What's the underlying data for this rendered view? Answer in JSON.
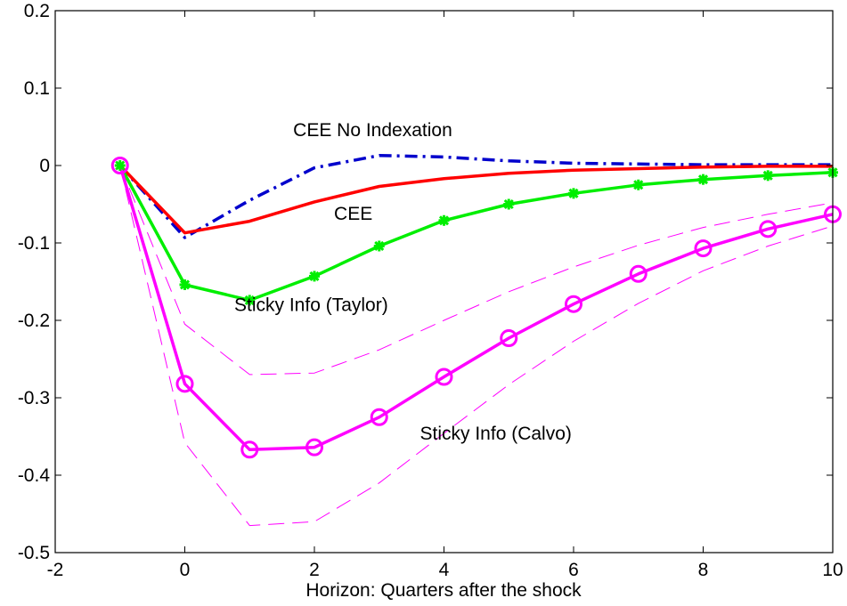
{
  "chart_data": {
    "type": "line",
    "title": "",
    "xlabel": "Horizon: Quarters after the shock",
    "ylabel": "",
    "xlim": [
      -2,
      10
    ],
    "ylim": [
      -0.5,
      0.2
    ],
    "xticks": [
      -2,
      0,
      2,
      4,
      6,
      8,
      10
    ],
    "yticks": [
      0.2,
      0.1,
      0,
      -0.1,
      -0.2,
      -0.3,
      -0.4,
      -0.5
    ],
    "xtick_labels": [
      "-2",
      "0",
      "2",
      "4",
      "6",
      "8",
      "10"
    ],
    "ytick_labels": [
      "0.2",
      "0.1",
      "0",
      "-0.1",
      "-0.2",
      "-0.3",
      "-0.4",
      "-0.5"
    ],
    "grid": false,
    "series": [
      {
        "name": "CEE No Indexation",
        "color": "#0000cc",
        "style": "dash-dot",
        "marker": "none",
        "x": [
          -1,
          0,
          1,
          2,
          3,
          4,
          5,
          6,
          7,
          8,
          9,
          10
        ],
        "y": [
          0,
          -0.093,
          -0.045,
          -0.003,
          0.013,
          0.011,
          0.006,
          0.003,
          0.002,
          0.001,
          0.001,
          0.001
        ]
      },
      {
        "name": "CEE",
        "color": "#ff0000",
        "style": "solid",
        "marker": "none",
        "x": [
          -1,
          0,
          1,
          2,
          3,
          4,
          5,
          6,
          7,
          8,
          9,
          10
        ],
        "y": [
          0,
          -0.087,
          -0.072,
          -0.047,
          -0.027,
          -0.017,
          -0.01,
          -0.006,
          -0.004,
          -0.002,
          -0.001,
          -0.001
        ]
      },
      {
        "name": "Sticky Info (Taylor)",
        "color": "#00ee00",
        "style": "solid",
        "marker": "star",
        "x": [
          -1,
          0,
          1,
          2,
          3,
          4,
          5,
          6,
          7,
          8,
          9,
          10
        ],
        "y": [
          0,
          -0.154,
          -0.174,
          -0.143,
          -0.104,
          -0.071,
          -0.05,
          -0.036,
          -0.025,
          -0.018,
          -0.013,
          -0.009
        ]
      },
      {
        "name": "Sticky Info (Calvo)",
        "color": "#ff00ff",
        "style": "solid",
        "marker": "circle",
        "x": [
          -1,
          0,
          1,
          2,
          3,
          4,
          5,
          6,
          7,
          8,
          9,
          10
        ],
        "y": [
          0,
          -0.282,
          -0.367,
          -0.364,
          -0.325,
          -0.273,
          -0.223,
          -0.179,
          -0.14,
          -0.107,
          -0.082,
          -0.063
        ]
      },
      {
        "name": "",
        "color": "#ff00ff",
        "style": "dashed-thin",
        "marker": "none",
        "x": [
          -1,
          0,
          1,
          2,
          3,
          4,
          5,
          6,
          7,
          8,
          9,
          10
        ],
        "y": [
          0,
          -0.205,
          -0.27,
          -0.268,
          -0.238,
          -0.2,
          -0.163,
          -0.131,
          -0.103,
          -0.08,
          -0.063,
          -0.048
        ]
      },
      {
        "name": "",
        "color": "#ff00ff",
        "style": "dashed-thin",
        "marker": "none",
        "x": [
          -1,
          0,
          1,
          2,
          3,
          4,
          5,
          6,
          7,
          8,
          9,
          10
        ],
        "y": [
          0,
          -0.358,
          -0.465,
          -0.46,
          -0.41,
          -0.346,
          -0.283,
          -0.227,
          -0.178,
          -0.136,
          -0.104,
          -0.078
        ]
      }
    ],
    "annotations": [
      {
        "text": "CEE No Indexation",
        "x": 2.9,
        "y": 0.038
      },
      {
        "text": "CEE",
        "x": 2.6,
        "y": -0.07
      },
      {
        "text": "Sticky Info (Taylor)",
        "x": 1.95,
        "y": -0.188
      },
      {
        "text": "Sticky Info (Calvo)",
        "x": 4.8,
        "y": -0.354
      }
    ]
  }
}
